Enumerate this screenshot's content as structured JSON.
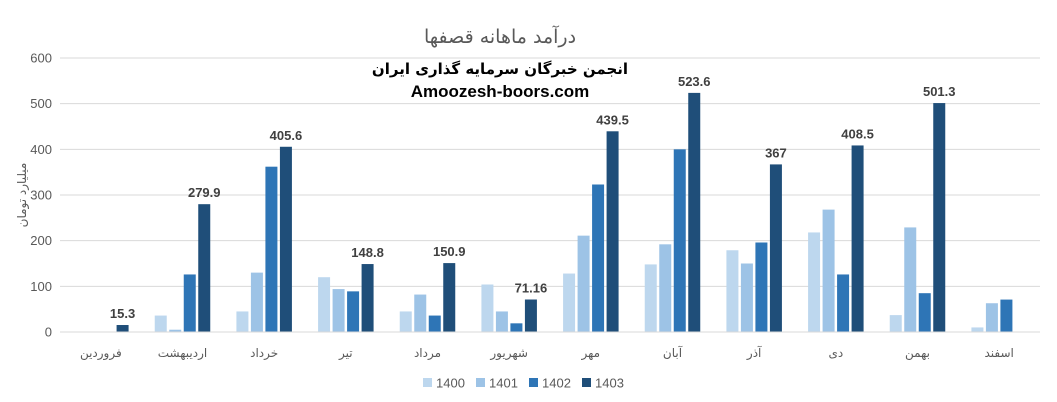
{
  "chart_data": {
    "type": "bar",
    "title": "درآمد ماهانه قصفها",
    "watermark_line1": "انجمن خبرگان سرمایه گذاری ایران",
    "watermark_line2": "Amoozesh-boors.com",
    "ylabel": "میلیارد تومان",
    "xlabel": "",
    "ylim": [
      0,
      600
    ],
    "yticks": [
      0,
      100,
      200,
      300,
      400,
      500,
      600
    ],
    "grid": true,
    "legend_position": "bottom",
    "categories": [
      "فروردین",
      "اردیبهشت",
      "خرداد",
      "تیر",
      "مرداد",
      "شهریور",
      "مهر",
      "آبان",
      "آذر",
      "دی",
      "بهمن",
      "اسفند"
    ],
    "series": [
      {
        "name": "1400",
        "color": "#bdd7ee",
        "values": [
          0,
          36,
          45,
          120,
          45,
          104,
          128,
          148,
          179,
          218,
          37,
          10
        ]
      },
      {
        "name": "1401",
        "color": "#9dc3e6",
        "values": [
          0,
          5,
          130,
          94,
          82,
          45,
          211,
          192,
          150,
          268,
          229,
          63
        ]
      },
      {
        "name": "1402",
        "color": "#2e75b6",
        "values": [
          0,
          126,
          362,
          89,
          36,
          19,
          323,
          400,
          196,
          126,
          85,
          71
        ]
      },
      {
        "name": "1403",
        "color": "#1f4e79",
        "values": [
          15.3,
          279.9,
          405.6,
          148.8,
          150.9,
          71.16,
          439.5,
          523.6,
          367,
          408.5,
          501.3,
          null
        ]
      }
    ],
    "data_labels": {
      "series": "1403",
      "labels": [
        "15.3",
        "279.9",
        "405.6",
        "148.8",
        "150.9",
        "71.16",
        "439.5",
        "523.6",
        "367",
        "408.5",
        "501.3",
        ""
      ]
    }
  }
}
